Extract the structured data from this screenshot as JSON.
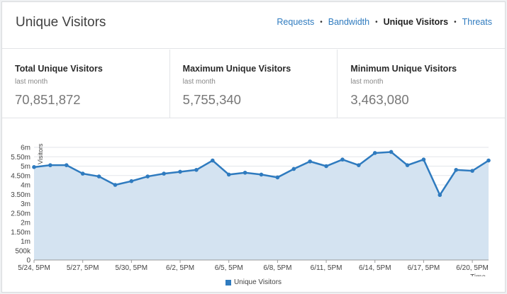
{
  "header": {
    "title": "Unique Visitors",
    "nav": [
      {
        "label": "Requests",
        "active": false
      },
      {
        "label": "Bandwidth",
        "active": false
      },
      {
        "label": "Unique Visitors",
        "active": true
      },
      {
        "label": "Threats",
        "active": false
      }
    ],
    "separator": "•"
  },
  "stats": [
    {
      "title": "Total Unique Visitors",
      "subtitle": "last month",
      "value": "70,851,872"
    },
    {
      "title": "Maximum Unique Visitors",
      "subtitle": "last month",
      "value": "5,755,340"
    },
    {
      "title": "Minimum Unique Visitors",
      "subtitle": "last month",
      "value": "3,463,080"
    }
  ],
  "colors": {
    "accent": "#2f7bbf",
    "line": "#2f7bbf",
    "fill": "#d4e3f1"
  },
  "chart_data": {
    "type": "area",
    "ylabel": "Visitors",
    "xlabel": "Time",
    "ylim": [
      0,
      6000000
    ],
    "y_ticks": [
      0,
      500000,
      1000000,
      1500000,
      2000000,
      2500000,
      3000000,
      3500000,
      4000000,
      4500000,
      5000000,
      5500000,
      6000000
    ],
    "y_tick_labels": [
      "0",
      "500k",
      "1m",
      "1.50m",
      "2m",
      "2.50m",
      "3m",
      "3.50m",
      "4m",
      "4.50m",
      "5m",
      "5.50m",
      "6m"
    ],
    "x_tick_labels": [
      "5/24, 5PM",
      "5/27, 5PM",
      "5/30, 5PM",
      "6/2, 5PM",
      "6/5, 5PM",
      "6/8, 5PM",
      "6/11, 5PM",
      "6/14, 5PM",
      "6/17, 5PM",
      "6/20, 5PM"
    ],
    "x_tick_index": [
      0,
      3,
      6,
      9,
      12,
      15,
      18,
      21,
      24,
      27
    ],
    "series": [
      {
        "name": "Unique Visitors",
        "values": [
          4950000,
          5050000,
          5050000,
          4600000,
          4450000,
          4000000,
          4200000,
          4450000,
          4600000,
          4700000,
          4800000,
          5300000,
          4550000,
          4650000,
          4550000,
          4400000,
          4850000,
          5250000,
          5000000,
          5350000,
          5050000,
          5700000,
          5755340,
          5050000,
          5350000,
          3463080,
          4800000,
          4750000,
          5300000
        ]
      }
    ],
    "grid": true,
    "legend": "bottom-center"
  }
}
